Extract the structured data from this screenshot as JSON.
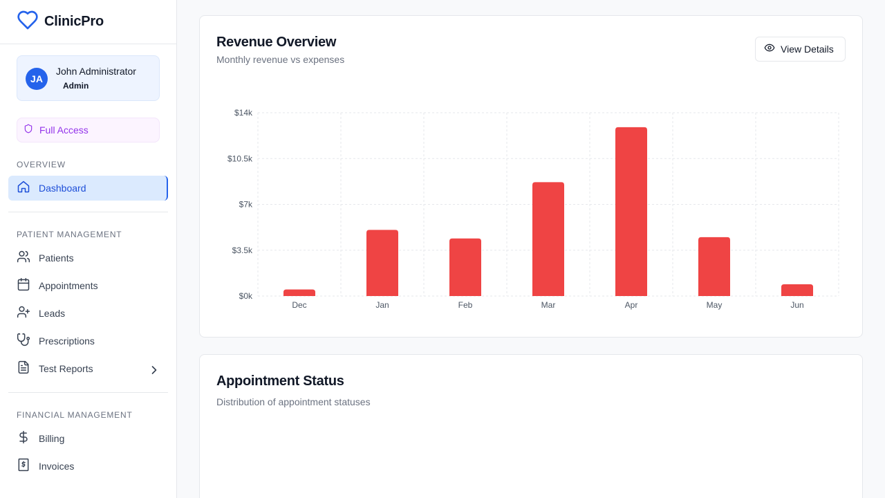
{
  "brand": {
    "name": "ClinicPro",
    "icon": "heart-icon",
    "color": "#2563eb"
  },
  "user": {
    "initials": "JA",
    "name": "John Administrator",
    "role": "Admin"
  },
  "access": {
    "label": "Full Access",
    "icon": "shield-icon",
    "color": "#9333ea"
  },
  "sections": {
    "overview": "OVERVIEW",
    "patient_management": "PATIENT MANAGEMENT",
    "financial_management": "FINANCIAL MANAGEMENT"
  },
  "nav": {
    "dashboard": {
      "label": "Dashboard",
      "icon": "home-icon",
      "active": true
    },
    "patients": {
      "label": "Patients",
      "icon": "users-icon"
    },
    "appointments": {
      "label": "Appointments",
      "icon": "calendar-icon"
    },
    "leads": {
      "label": "Leads",
      "icon": "user-plus-icon"
    },
    "prescriptions": {
      "label": "Prescriptions",
      "icon": "stethoscope-icon"
    },
    "test_reports": {
      "label": "Test Reports",
      "icon": "file-text-icon",
      "expandable": true
    },
    "billing": {
      "label": "Billing",
      "icon": "dollar-icon"
    },
    "invoices": {
      "label": "Invoices",
      "icon": "receipt-icon"
    }
  },
  "revenue_card": {
    "title": "Revenue Overview",
    "subtitle": "Monthly revenue vs expenses",
    "button_label": "View Details",
    "button_icon": "eye-icon"
  },
  "appointment_card": {
    "title": "Appointment Status",
    "subtitle": "Distribution of appointment statuses"
  },
  "chart_data": {
    "type": "bar",
    "categories": [
      "Dec",
      "Jan",
      "Feb",
      "Mar",
      "Apr",
      "May",
      "Jun"
    ],
    "series": [
      {
        "values": [
          500,
          5050,
          4400,
          8700,
          12900,
          4500,
          900
        ],
        "color": "#ef4444"
      }
    ],
    "ylim": [
      0,
      14000
    ],
    "yticks": [
      0,
      3500,
      7000,
      10500,
      14000
    ],
    "ytick_labels": [
      "$0k",
      "$3.5k",
      "$7k",
      "$10.5k",
      "$14k"
    ],
    "grid": true,
    "xlabel": "",
    "ylabel": ""
  }
}
